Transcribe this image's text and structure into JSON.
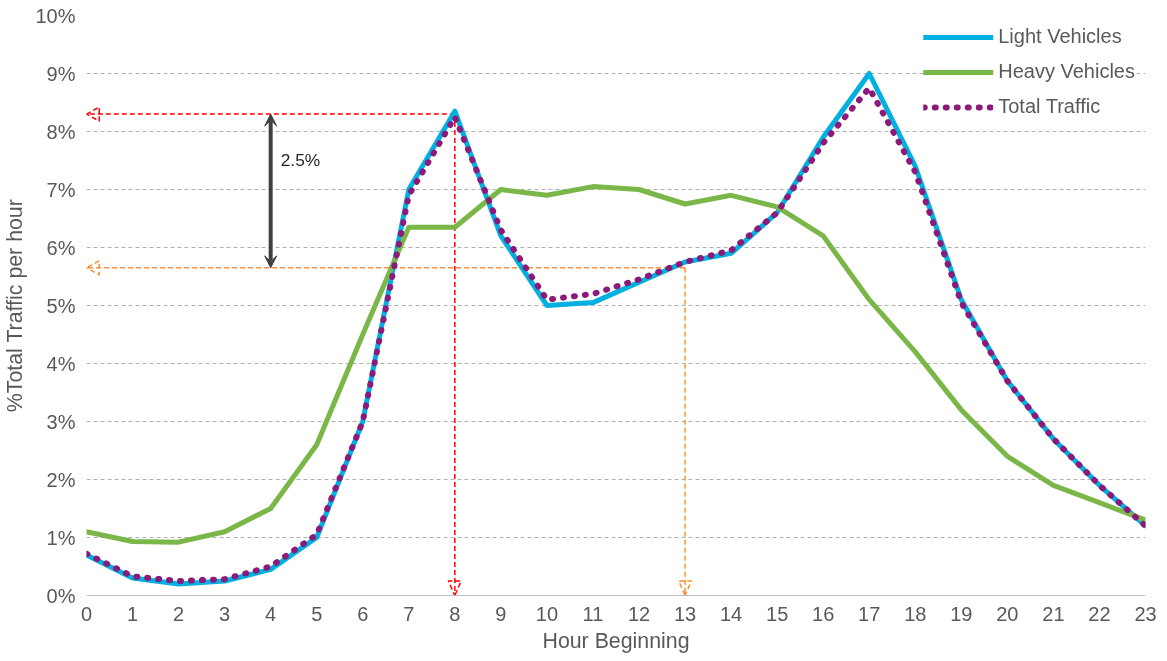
{
  "chart_data": {
    "type": "line",
    "xlabel": "Hour Beginning",
    "ylabel": "%Total Traffic per hour",
    "x": [
      0,
      1,
      2,
      3,
      4,
      5,
      6,
      7,
      8,
      9,
      10,
      11,
      12,
      13,
      14,
      15,
      16,
      17,
      18,
      19,
      20,
      21,
      22,
      23
    ],
    "series": [
      {
        "name": "Light Vehicles",
        "color": "#00b0e0",
        "line_style": "solid",
        "values": [
          0.7,
          0.3,
          0.2,
          0.25,
          0.45,
          1.0,
          3.0,
          7.0,
          8.35,
          6.2,
          5.0,
          5.05,
          5.4,
          5.75,
          5.9,
          6.6,
          7.9,
          9.0,
          7.4,
          5.1,
          3.7,
          2.7,
          1.9,
          1.2
        ]
      },
      {
        "name": "Heavy Vehicles",
        "color": "#7ab648",
        "line_style": "solid",
        "values": [
          1.1,
          0.93,
          0.92,
          1.1,
          1.5,
          2.6,
          4.5,
          6.35,
          6.35,
          7.0,
          6.9,
          7.05,
          7.0,
          6.75,
          6.9,
          6.7,
          6.2,
          5.1,
          4.2,
          3.2,
          2.4,
          1.9,
          1.6,
          1.3
        ]
      },
      {
        "name": "Total Traffic",
        "color": "#8b1a7a",
        "line_style": "dotted",
        "values": [
          0.72,
          0.33,
          0.25,
          0.28,
          0.5,
          1.05,
          3.0,
          6.9,
          8.25,
          6.3,
          5.1,
          5.2,
          5.45,
          5.75,
          5.95,
          6.6,
          7.8,
          8.75,
          7.3,
          5.05,
          3.7,
          2.7,
          1.9,
          1.2
        ]
      }
    ],
    "xlim": [
      0,
      23
    ],
    "xticks": [
      0,
      1,
      2,
      3,
      4,
      5,
      6,
      7,
      8,
      9,
      10,
      11,
      12,
      13,
      14,
      15,
      16,
      17,
      18,
      19,
      20,
      21,
      22,
      23
    ],
    "ylim": [
      0,
      10
    ],
    "yticks": [
      {
        "value": 0,
        "label": "0%"
      },
      {
        "value": 1,
        "label": "1%"
      },
      {
        "value": 2,
        "label": "2%"
      },
      {
        "value": 3,
        "label": "3%"
      },
      {
        "value": 4,
        "label": "4%"
      },
      {
        "value": 5,
        "label": "5%"
      },
      {
        "value": 6,
        "label": "6%"
      },
      {
        "value": 7,
        "label": "7%"
      },
      {
        "value": 8,
        "label": "8%"
      },
      {
        "value": 9,
        "label": "9%"
      },
      {
        "value": 10,
        "label": "10%"
      }
    ],
    "ref_lines": [
      {
        "axis": "x",
        "value": 8,
        "label": null,
        "color": "#ff0000",
        "line_style": "dashed"
      },
      {
        "axis": "y",
        "value": 8.3,
        "label": null,
        "color": "#ff0000",
        "line_style": "dashed"
      },
      {
        "axis": "x",
        "value": 13,
        "label": null,
        "color": "#f79232",
        "line_style": "dashed"
      },
      {
        "axis": "y",
        "value": 5.65,
        "label": null,
        "color": "#f79232",
        "line_style": "dashed"
      }
    ],
    "annotations": [
      "2.5%"
    ],
    "grid": "y",
    "legend": "top right"
  }
}
